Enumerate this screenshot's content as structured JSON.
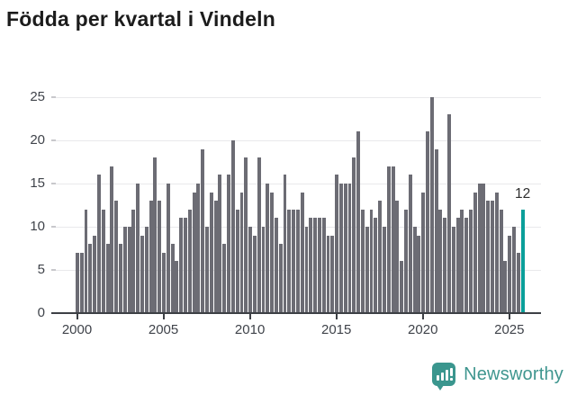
{
  "title": "Födda per kvartal i Vindeln",
  "chart_data": {
    "type": "bar",
    "title": "Födda per kvartal i Vindeln",
    "xlabel": "",
    "ylabel": "",
    "y_ticks": [
      0,
      5,
      10,
      15,
      20,
      25
    ],
    "ylim": [
      0,
      26
    ],
    "x_tick_labels": [
      "2000",
      "2005",
      "2010",
      "2015",
      "2020",
      "2025"
    ],
    "grid": true,
    "legend_position": "none",
    "bar_color": "#6c6c74",
    "highlight_color": "#0b9f9a",
    "series_name": "Födda per kvartal",
    "years": [
      {
        "year": 2000,
        "values": [
          7,
          7,
          12,
          8
        ]
      },
      {
        "year": 2001,
        "values": [
          9,
          16,
          12,
          8
        ]
      },
      {
        "year": 2002,
        "values": [
          17,
          13,
          8,
          10
        ]
      },
      {
        "year": 2003,
        "values": [
          10,
          12,
          15,
          9
        ]
      },
      {
        "year": 2004,
        "values": [
          10,
          13,
          18,
          13
        ]
      },
      {
        "year": 2005,
        "values": [
          7,
          15,
          8,
          6
        ]
      },
      {
        "year": 2006,
        "values": [
          11,
          11,
          12,
          14
        ]
      },
      {
        "year": 2007,
        "values": [
          15,
          19,
          10,
          14
        ]
      },
      {
        "year": 2008,
        "values": [
          13,
          16,
          8,
          16
        ]
      },
      {
        "year": 2009,
        "values": [
          20,
          12,
          14,
          18
        ]
      },
      {
        "year": 2010,
        "values": [
          10,
          9,
          18,
          10
        ]
      },
      {
        "year": 2011,
        "values": [
          15,
          14,
          11,
          8
        ]
      },
      {
        "year": 2012,
        "values": [
          16,
          12,
          12,
          12
        ]
      },
      {
        "year": 2013,
        "values": [
          14,
          10,
          11,
          11
        ]
      },
      {
        "year": 2014,
        "values": [
          11,
          11,
          9,
          9
        ]
      },
      {
        "year": 2015,
        "values": [
          16,
          15,
          15,
          15
        ]
      },
      {
        "year": 2016,
        "values": [
          18,
          21,
          12,
          10
        ]
      },
      {
        "year": 2017,
        "values": [
          12,
          11,
          13,
          10
        ]
      },
      {
        "year": 2018,
        "values": [
          17,
          17,
          13,
          6
        ]
      },
      {
        "year": 2019,
        "values": [
          12,
          16,
          10,
          9
        ]
      },
      {
        "year": 2020,
        "values": [
          14,
          21,
          25,
          19
        ]
      },
      {
        "year": 2021,
        "values": [
          12,
          11,
          23,
          10
        ]
      },
      {
        "year": 2022,
        "values": [
          11,
          12,
          11,
          12
        ]
      },
      {
        "year": 2023,
        "values": [
          14,
          15,
          15,
          13
        ]
      },
      {
        "year": 2024,
        "values": [
          13,
          14,
          12,
          6
        ]
      },
      {
        "year": 2025,
        "values": [
          9,
          10,
          7,
          12
        ]
      }
    ],
    "highlight": {
      "position": "last",
      "value": 12,
      "label": "12"
    }
  },
  "footer": {
    "brand": "Newsworthy",
    "logo_icon": "bar-chart-speech-bubble-icon"
  },
  "colors": {
    "title_text": "#1c1c1c",
    "axis_text": "#3f434a",
    "bar": "#6c6c74",
    "highlight": "#0b9f9a",
    "gridline": "#e9e9eb",
    "axis_line": "#3d4045",
    "logo_teal": "#3a968e"
  }
}
